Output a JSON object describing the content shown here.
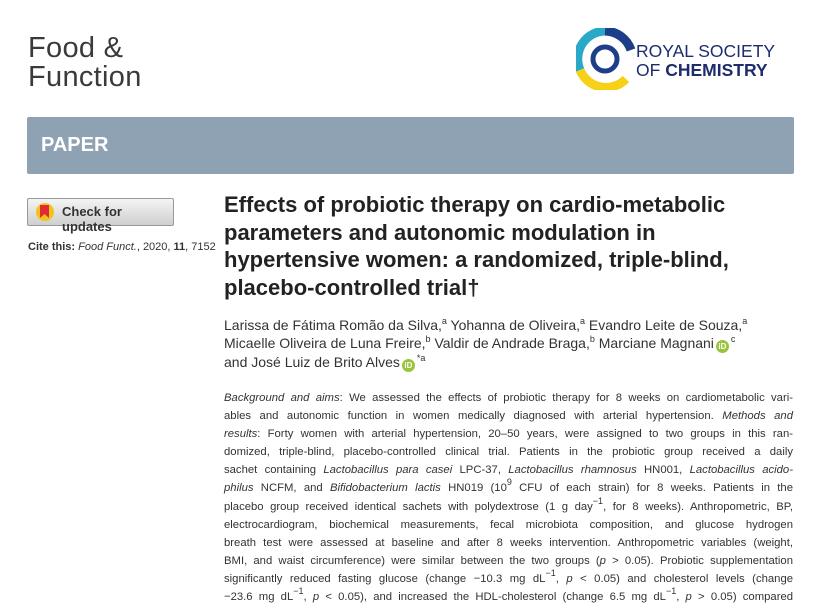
{
  "journal": {
    "line1": "Food &",
    "line2": "Function"
  },
  "logo": {
    "line1": "ROYAL SOCIETY",
    "line2a": "OF",
    "line2b": "CHEMISTRY"
  },
  "banner": "PAPER",
  "check_updates": "Check for updates",
  "cite": {
    "label": "Cite this:",
    "journal": "Food Funct.",
    "year": ", 2020, ",
    "volume": "11",
    "page": ", 7152"
  },
  "title": [
    "Effects of probiotic therapy on cardio-metabolic",
    "parameters and autonomic modulation in",
    "hypertensive women: a randomized, triple-blind,",
    "placebo-controlled trial†"
  ],
  "authors": [
    {
      "name": "Larissa de Fátima Romão da Silva,",
      "affil": "a"
    },
    {
      "name": "Yohanna de Oliveira,",
      "affil": "a"
    },
    {
      "name": "Evandro Leite de Souza,",
      "affil": "a"
    },
    {
      "name": "Micaelle Oliveira de Luna Freire,",
      "affil": "b"
    },
    {
      "name": "Valdir de Andrade Braga,",
      "affil": "b"
    },
    {
      "name": "Marciane Magnani",
      "affil": "c"
    },
    {
      "name": "and José Luiz de Brito Alves",
      "affil": "*a"
    }
  ],
  "abstract": [
    [
      {
        "text": "Background and aims",
        "italic": true
      },
      {
        "text": ": We assessed the effects of probiotic therapy for 8 weeks on cardiometabolic vari-"
      }
    ],
    [
      {
        "text": "ables and autonomic function in women medically diagnosed with arterial hypertension. "
      },
      {
        "text": "Methods and",
        "italic": true
      }
    ],
    [
      {
        "text": "results",
        "italic": true
      },
      {
        "text": ": Forty women with arterial hypertension, 20–50 years, were assigned to two groups in this ran-"
      }
    ],
    [
      {
        "text": "domized, triple-blind, placebo-controlled clinical trial. Patients in the probiotic group received a daily"
      }
    ],
    [
      {
        "text": "sachet containing "
      },
      {
        "text": "Lactobacillus para casei",
        "italic": true
      },
      {
        "text": " LPC-37, "
      },
      {
        "text": "Lactobacillus rhamnosus",
        "italic": true
      },
      {
        "text": " HN001, "
      },
      {
        "text": "Lactobacillus acido-",
        "italic": true
      }
    ],
    [
      {
        "text": "philus",
        "italic": true
      },
      {
        "text": " NCFM, and "
      },
      {
        "text": "Bifidobacterium lactis",
        "italic": true
      },
      {
        "text": " HN019 (10"
      },
      {
        "text": "9",
        "sup": true
      },
      {
        "text": " CFU of each strain) for 8 weeks. Patients in the"
      }
    ],
    [
      {
        "text": "placebo group received identical sachets with polydextrose (1 g day"
      },
      {
        "text": "−1",
        "sup": true
      },
      {
        "text": ", for 8 weeks). Anthropometric, BP,"
      }
    ],
    [
      {
        "text": "electrocardiogram, biochemical measurements, fecal microbiota composition, and glucose hydrogen"
      }
    ],
    [
      {
        "text": "breath test were assessed at baseline and after 8 weeks intervention. Anthropometric variables (weight,"
      }
    ],
    [
      {
        "text": "BMI, and waist circumference) were similar between the two groups ("
      },
      {
        "text": "p",
        "italic": true
      },
      {
        "text": " > 0.05). Probiotic supplementation"
      }
    ],
    [
      {
        "text": "significantly reduced fasting glucose (change −10.3 mg dL"
      },
      {
        "text": "−1",
        "sup": true
      },
      {
        "text": ", "
      },
      {
        "text": "p",
        "italic": true
      },
      {
        "text": " < 0.05) and cholesterol levels (change"
      }
    ],
    [
      {
        "text": "−23.6 mg dL"
      },
      {
        "text": "−1",
        "sup": true
      },
      {
        "text": ", "
      },
      {
        "text": "p",
        "italic": true
      },
      {
        "text": " < 0.05), and increased the HDL-cholesterol (change 6.5 mg dL"
      },
      {
        "text": "−1",
        "sup": true
      },
      {
        "text": ", "
      },
      {
        "text": "p",
        "italic": true
      },
      {
        "text": " > 0.05) compared"
      }
    ]
  ]
}
